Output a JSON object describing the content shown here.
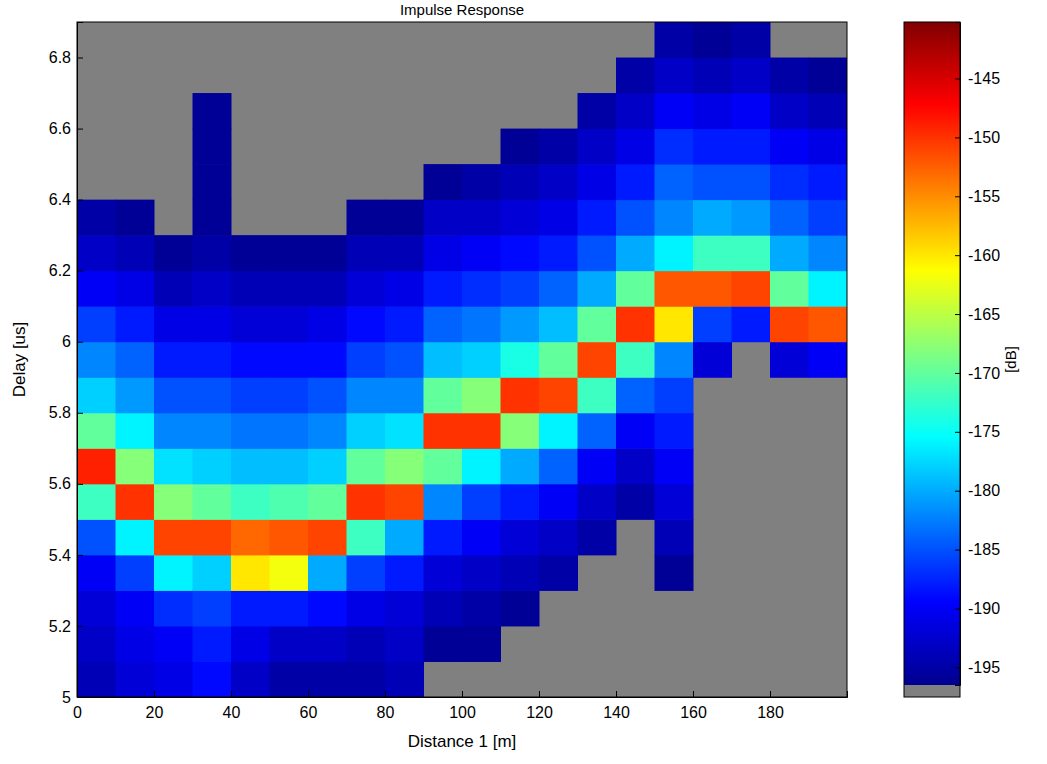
{
  "chart_data": {
    "type": "heatmap",
    "title": "Impulse Response",
    "x_label": "Distance 1 [m]",
    "y_label": "Delay [us]",
    "xlim": [
      0,
      200
    ],
    "ylim": [
      5,
      6.9
    ],
    "xticks": [
      0,
      20,
      40,
      60,
      80,
      100,
      120,
      140,
      160,
      180
    ],
    "yticks": [
      5,
      5.2,
      5.4,
      5.6,
      5.8,
      6,
      6.2,
      6.4,
      6.6,
      6.8
    ],
    "x_bins": [
      0,
      10,
      20,
      30,
      40,
      50,
      60,
      70,
      80,
      90,
      100,
      110,
      120,
      130,
      140,
      150,
      160,
      170,
      180,
      190,
      200
    ],
    "y_bins": [
      5,
      5.1,
      5.2,
      5.3,
      5.4,
      5.5,
      5.6,
      5.7,
      5.8,
      5.9,
      6,
      6.1,
      6.2,
      6.3,
      6.4,
      6.5,
      6.6,
      6.7,
      6.8,
      6.9
    ],
    "values": [
      [
        -194,
        -193,
        -192,
        -190,
        -185,
        -172,
        -149,
        -170,
        -178,
        -182,
        -186,
        -190,
        -193,
        -195,
        null,
        null,
        null,
        null,
        null
      ],
      [
        -192,
        -191,
        -190,
        -186,
        -176,
        -150,
        -168,
        -176,
        -181,
        -184,
        -188,
        -191,
        -194,
        -196,
        null,
        null,
        null,
        null,
        null
      ],
      [
        -191,
        -190,
        -187,
        -176,
        -151,
        -168,
        -177,
        -182,
        -185,
        -188,
        -191,
        -194,
        -196,
        null,
        null,
        null,
        null,
        null,
        null
      ],
      [
        -189,
        -188,
        -186,
        -178,
        -151,
        -170,
        -178,
        -182,
        -185,
        -188,
        -191,
        -193,
        -195,
        -196,
        -196,
        -196,
        -196,
        null,
        null
      ],
      [
        -193,
        -191,
        -188,
        -160,
        -153,
        -172,
        -179,
        -183,
        -186,
        -189,
        -192,
        -194,
        -196,
        null,
        null,
        null,
        null,
        null,
        null
      ],
      [
        -195,
        -193,
        -188,
        -162,
        -152,
        -171,
        -179,
        -183,
        -186,
        -189,
        -192,
        -194,
        -196,
        null,
        null,
        null,
        null,
        null,
        null
      ],
      [
        -195,
        -193,
        -189,
        -180,
        -151,
        -170,
        -178,
        -182,
        -185,
        -189,
        -191,
        -194,
        -196,
        null,
        null,
        null,
        null,
        null,
        null
      ],
      [
        -195,
        -194,
        -191,
        -186,
        -172,
        -150,
        -170,
        -178,
        -182,
        -186,
        -189,
        -192,
        -194,
        -196,
        null,
        null,
        null,
        null,
        null
      ],
      [
        -194,
        -193,
        -192,
        -188,
        -180,
        -151,
        -168,
        -177,
        -182,
        -185,
        -188,
        -191,
        -194,
        -196,
        null,
        null,
        null,
        null,
        null
      ],
      [
        null,
        -196,
        -194,
        -192,
        -188,
        -182,
        -170,
        -150,
        -170,
        -179,
        -184,
        -188,
        -191,
        -193,
        -196,
        null,
        null,
        null,
        null
      ],
      [
        null,
        -196,
        -195,
        -193,
        -190,
        -186,
        -176,
        -150,
        -168,
        -178,
        -183,
        -187,
        -190,
        -193,
        -195,
        null,
        null,
        null,
        null
      ],
      [
        null,
        null,
        -196,
        -194,
        -192,
        -188,
        -180,
        -168,
        -150,
        -174,
        -181,
        -186,
        -189,
        -192,
        -194,
        -196,
        null,
        null,
        null
      ],
      [
        null,
        null,
        null,
        -195,
        -193,
        -190,
        -184,
        -176,
        -151,
        -170,
        -179,
        -184,
        -188,
        -191,
        -193,
        -195,
        null,
        null,
        null
      ],
      [
        null,
        null,
        null,
        null,
        -195,
        -193,
        -190,
        -184,
        -172,
        -151,
        -170,
        -180,
        -185,
        -188,
        -191,
        -193,
        -195,
        null,
        null
      ],
      [
        null,
        null,
        null,
        null,
        null,
        -195,
        -193,
        -190,
        -184,
        -172,
        -150,
        -170,
        -180,
        -185,
        -188,
        -191,
        -193,
        -195,
        null
      ],
      [
        null,
        null,
        null,
        -196,
        -194,
        -192,
        -190,
        -188,
        -186,
        -182,
        -160,
        -152,
        -176,
        -182,
        -184,
        -187,
        -190,
        -193,
        -195
      ],
      [
        null,
        null,
        null,
        null,
        null,
        null,
        null,
        null,
        null,
        -192,
        -186,
        -152,
        -172,
        -180,
        -185,
        -188,
        -191,
        -194,
        -196
      ],
      [
        null,
        null,
        null,
        null,
        null,
        null,
        null,
        null,
        null,
        null,
        -188,
        -151,
        -172,
        -181,
        -185,
        -188,
        -190,
        -193,
        -195
      ],
      [
        null,
        null,
        null,
        null,
        null,
        null,
        null,
        null,
        null,
        -192,
        -151,
        -170,
        -180,
        -184,
        -187,
        -190,
        -193,
        -195,
        null
      ],
      [
        null,
        null,
        null,
        null,
        null,
        null,
        null,
        null,
        null,
        -190,
        -152,
        -176,
        -182,
        -186,
        -188,
        -191,
        -194,
        -196,
        null
      ]
    ],
    "colorbar": {
      "range": [
        -196.5,
        -140.2
      ],
      "ticks": [
        -145,
        -150,
        -155,
        -160,
        -165,
        -170,
        -175,
        -180,
        -185,
        -190,
        -195
      ],
      "label": "[dB]"
    }
  }
}
